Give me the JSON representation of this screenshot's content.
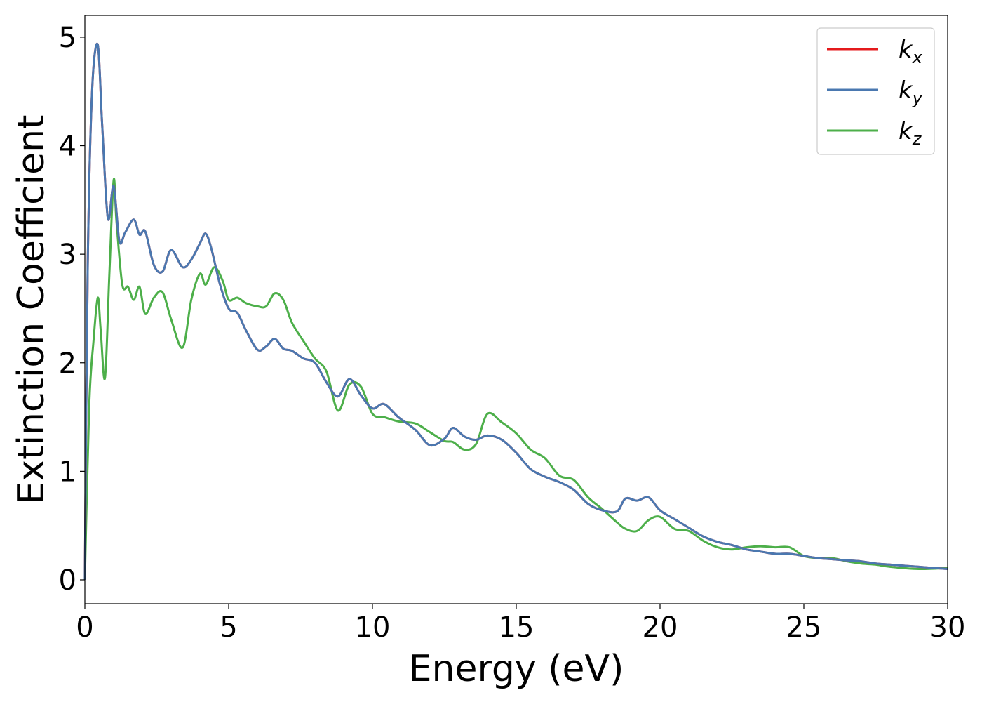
{
  "chart_data": {
    "type": "line",
    "xlabel": "Energy (eV)",
    "ylabel": "Extinction Coefficient",
    "xlim": [
      0,
      30
    ],
    "ylim": [
      -0.22,
      5.2
    ],
    "x_ticks": [
      "0",
      "5",
      "10",
      "15",
      "20",
      "25",
      "30"
    ],
    "y_ticks": [
      "0",
      "1",
      "2",
      "3",
      "4",
      "5"
    ],
    "grid": false,
    "legend_position": "top-right",
    "colors": {
      "kx": "#e41a1c",
      "ky": "#4a78b0",
      "kz": "#4daf4a"
    },
    "series": [
      {
        "name": "k",
        "subscript": "x",
        "color": "#e41a1c",
        "x": [
          0,
          0.1,
          0.25,
          0.45,
          0.6,
          0.8,
          1.0,
          1.2,
          1.4,
          1.7,
          1.9,
          2.1,
          2.4,
          2.7,
          3.0,
          3.4,
          3.7,
          4.0,
          4.2,
          4.4,
          4.7,
          5.0,
          5.3,
          5.6,
          6.0,
          6.3,
          6.6,
          6.9,
          7.2,
          7.6,
          8.0,
          8.4,
          8.8,
          9.2,
          9.6,
          10.0,
          10.4,
          10.9,
          11.5,
          12.0,
          12.5,
          12.8,
          13.2,
          13.6,
          14.0,
          14.5,
          15.0,
          15.5,
          16.0,
          16.5,
          17.0,
          17.5,
          18.0,
          18.5,
          18.8,
          19.2,
          19.6,
          20.0,
          20.5,
          21.0,
          21.5,
          22.0,
          22.5,
          23.0,
          23.5,
          24.0,
          24.5,
          25.0,
          25.5,
          26.0,
          26.5,
          27.0,
          27.5,
          28.0,
          29.0,
          30.0
        ],
        "y": [
          0,
          2.9,
          4.5,
          4.93,
          4.2,
          3.33,
          3.63,
          3.12,
          3.2,
          3.32,
          3.18,
          3.21,
          2.9,
          2.84,
          3.04,
          2.88,
          2.95,
          3.1,
          3.19,
          3.05,
          2.72,
          2.5,
          2.46,
          2.3,
          2.12,
          2.15,
          2.22,
          2.13,
          2.11,
          2.04,
          2.0,
          1.82,
          1.69,
          1.85,
          1.7,
          1.58,
          1.62,
          1.5,
          1.38,
          1.24,
          1.3,
          1.4,
          1.32,
          1.29,
          1.33,
          1.29,
          1.17,
          1.02,
          0.95,
          0.9,
          0.83,
          0.7,
          0.64,
          0.63,
          0.75,
          0.73,
          0.76,
          0.64,
          0.56,
          0.48,
          0.4,
          0.35,
          0.32,
          0.28,
          0.26,
          0.24,
          0.24,
          0.22,
          0.2,
          0.19,
          0.18,
          0.17,
          0.15,
          0.14,
          0.12,
          0.1
        ]
      },
      {
        "name": "k",
        "subscript": "y",
        "color": "#4a78b0",
        "x": [
          0,
          0.1,
          0.25,
          0.45,
          0.6,
          0.8,
          1.0,
          1.2,
          1.4,
          1.7,
          1.9,
          2.1,
          2.4,
          2.7,
          3.0,
          3.4,
          3.7,
          4.0,
          4.2,
          4.4,
          4.7,
          5.0,
          5.3,
          5.6,
          6.0,
          6.3,
          6.6,
          6.9,
          7.2,
          7.6,
          8.0,
          8.4,
          8.8,
          9.2,
          9.6,
          10.0,
          10.4,
          10.9,
          11.5,
          12.0,
          12.5,
          12.8,
          13.2,
          13.6,
          14.0,
          14.5,
          15.0,
          15.5,
          16.0,
          16.5,
          17.0,
          17.5,
          18.0,
          18.5,
          18.8,
          19.2,
          19.6,
          20.0,
          20.5,
          21.0,
          21.5,
          22.0,
          22.5,
          23.0,
          23.5,
          24.0,
          24.5,
          25.0,
          25.5,
          26.0,
          26.5,
          27.0,
          27.5,
          28.0,
          29.0,
          30.0
        ],
        "y": [
          0,
          2.9,
          4.5,
          4.93,
          4.2,
          3.33,
          3.63,
          3.12,
          3.2,
          3.32,
          3.18,
          3.21,
          2.9,
          2.84,
          3.04,
          2.88,
          2.95,
          3.1,
          3.19,
          3.05,
          2.72,
          2.5,
          2.46,
          2.3,
          2.12,
          2.15,
          2.22,
          2.13,
          2.11,
          2.04,
          2.0,
          1.82,
          1.69,
          1.85,
          1.7,
          1.58,
          1.62,
          1.5,
          1.38,
          1.24,
          1.3,
          1.4,
          1.32,
          1.29,
          1.33,
          1.29,
          1.17,
          1.02,
          0.95,
          0.9,
          0.83,
          0.7,
          0.64,
          0.63,
          0.75,
          0.73,
          0.76,
          0.64,
          0.56,
          0.48,
          0.4,
          0.35,
          0.32,
          0.28,
          0.26,
          0.24,
          0.24,
          0.22,
          0.2,
          0.19,
          0.18,
          0.17,
          0.15,
          0.14,
          0.12,
          0.1
        ]
      },
      {
        "name": "k",
        "subscript": "z",
        "color": "#4daf4a",
        "x": [
          0,
          0.15,
          0.3,
          0.45,
          0.55,
          0.7,
          0.85,
          1.0,
          1.1,
          1.3,
          1.5,
          1.7,
          1.9,
          2.1,
          2.4,
          2.7,
          3.0,
          3.4,
          3.7,
          4.0,
          4.2,
          4.5,
          4.8,
          5.0,
          5.3,
          5.6,
          6.0,
          6.3,
          6.6,
          6.9,
          7.2,
          7.6,
          8.0,
          8.4,
          8.8,
          9.2,
          9.6,
          10.0,
          10.4,
          10.9,
          11.5,
          12.0,
          12.5,
          12.8,
          13.2,
          13.6,
          14.0,
          14.5,
          15.0,
          15.5,
          16.0,
          16.5,
          17.0,
          17.5,
          18.0,
          18.5,
          18.8,
          19.2,
          19.6,
          20.0,
          20.5,
          21.0,
          21.5,
          22.0,
          22.5,
          23.0,
          23.5,
          24.0,
          24.5,
          25.0,
          25.5,
          26.0,
          26.5,
          27.0,
          27.5,
          28.0,
          29.0,
          30.0
        ],
        "y": [
          0,
          1.6,
          2.2,
          2.6,
          2.3,
          1.86,
          2.8,
          3.68,
          3.3,
          2.72,
          2.7,
          2.58,
          2.7,
          2.45,
          2.6,
          2.65,
          2.4,
          2.14,
          2.58,
          2.82,
          2.72,
          2.88,
          2.75,
          2.58,
          2.6,
          2.55,
          2.52,
          2.52,
          2.64,
          2.58,
          2.37,
          2.2,
          2.04,
          1.92,
          1.56,
          1.8,
          1.78,
          1.53,
          1.5,
          1.46,
          1.44,
          1.36,
          1.28,
          1.27,
          1.2,
          1.25,
          1.53,
          1.45,
          1.35,
          1.2,
          1.12,
          0.96,
          0.92,
          0.76,
          0.65,
          0.53,
          0.47,
          0.45,
          0.55,
          0.58,
          0.47,
          0.45,
          0.36,
          0.3,
          0.28,
          0.3,
          0.31,
          0.3,
          0.3,
          0.22,
          0.2,
          0.2,
          0.17,
          0.15,
          0.14,
          0.12,
          0.1,
          0.11
        ]
      }
    ]
  }
}
